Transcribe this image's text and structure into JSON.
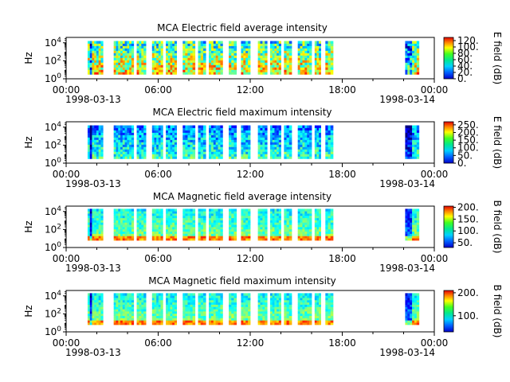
{
  "chart_data": [
    {
      "type": "heatmap",
      "title": "MCA  Electric field average intensity",
      "ylabel": "Hz",
      "yticks": [
        {
          "base": "10",
          "exp": "0"
        },
        {
          "base": "10",
          "exp": "2"
        },
        {
          "base": "10",
          "exp": "4"
        }
      ],
      "xticks": [
        "00:00",
        "06:00",
        "12:00",
        "18:00",
        "00:00"
      ],
      "xdates": [
        "1998-03-13",
        "1998-03-14"
      ],
      "xrange_hours": [
        0,
        24
      ],
      "yrange_log10_hz": [
        0,
        4.6
      ],
      "colorbar": {
        "label": "E field (dB)",
        "ticks": [
          "120.",
          "100.",
          "80.",
          "60.",
          "40.",
          "20.",
          "0."
        ],
        "range": [
          0,
          130
        ]
      },
      "data_intervals_hours": [
        [
          1.4,
          2.4
        ],
        [
          3.1,
          4.4
        ],
        [
          4.6,
          5.2
        ],
        [
          5.6,
          6.3
        ],
        [
          6.5,
          7.2
        ],
        [
          7.6,
          8.4
        ],
        [
          8.6,
          9.1
        ],
        [
          9.3,
          10.2
        ],
        [
          10.6,
          11.1
        ],
        [
          11.4,
          12.0
        ],
        [
          12.5,
          13.1
        ],
        [
          13.3,
          14.0
        ],
        [
          14.2,
          14.7
        ],
        [
          15.1,
          16.0
        ],
        [
          16.2,
          16.6
        ],
        [
          16.9,
          17.4
        ],
        [
          22.1,
          23.0
        ]
      ],
      "freq_band_log10_hz": [
        0.5,
        4.2
      ],
      "profile": "average"
    },
    {
      "type": "heatmap",
      "title": "MCA  Electric field maximum intensity",
      "ylabel": "Hz",
      "yticks": [
        {
          "base": "10",
          "exp": "0"
        },
        {
          "base": "10",
          "exp": "2"
        },
        {
          "base": "10",
          "exp": "4"
        }
      ],
      "xticks": [
        "00:00",
        "06:00",
        "12:00",
        "18:00",
        "00:00"
      ],
      "xdates": [
        "1998-03-13",
        "1998-03-14"
      ],
      "xrange_hours": [
        0,
        24
      ],
      "yrange_log10_hz": [
        0,
        4.6
      ],
      "colorbar": {
        "label": "E field (dB)",
        "ticks": [
          "250.",
          "200.",
          "150.",
          "100.",
          "50.",
          "0."
        ],
        "range": [
          0,
          270
        ]
      },
      "data_intervals_hours": [
        [
          1.4,
          2.4
        ],
        [
          3.1,
          4.4
        ],
        [
          4.6,
          5.2
        ],
        [
          5.6,
          6.3
        ],
        [
          6.5,
          7.2
        ],
        [
          7.6,
          8.4
        ],
        [
          8.6,
          9.1
        ],
        [
          9.3,
          10.2
        ],
        [
          10.6,
          11.1
        ],
        [
          11.4,
          12.0
        ],
        [
          12.5,
          13.1
        ],
        [
          13.3,
          14.0
        ],
        [
          14.2,
          14.7
        ],
        [
          15.1,
          16.0
        ],
        [
          16.2,
          16.6
        ],
        [
          16.9,
          17.4
        ],
        [
          22.1,
          23.0
        ]
      ],
      "freq_band_log10_hz": [
        0.5,
        4.2
      ],
      "profile": "maximum"
    },
    {
      "type": "heatmap",
      "title": "MCA  Magnetic field average intensity",
      "ylabel": "Hz",
      "yticks": [
        {
          "base": "10",
          "exp": "0"
        },
        {
          "base": "10",
          "exp": "2"
        },
        {
          "base": "10",
          "exp": "4"
        }
      ],
      "xticks": [
        "00:00",
        "06:00",
        "12:00",
        "18:00",
        "00:00"
      ],
      "xdates": [
        "1998-03-13",
        "1998-03-14"
      ],
      "xrange_hours": [
        0,
        24
      ],
      "yrange_log10_hz": [
        0,
        4.6
      ],
      "colorbar": {
        "label": "B field (dB)",
        "ticks": [
          "200.",
          "150.",
          "100.",
          "50."
        ],
        "range": [
          30,
          205
        ]
      },
      "data_intervals_hours": [
        [
          1.4,
          2.4
        ],
        [
          3.1,
          4.4
        ],
        [
          4.6,
          5.2
        ],
        [
          5.6,
          6.3
        ],
        [
          6.5,
          7.2
        ],
        [
          7.6,
          8.4
        ],
        [
          8.6,
          9.1
        ],
        [
          9.3,
          10.2
        ],
        [
          10.6,
          11.1
        ],
        [
          11.4,
          12.0
        ],
        [
          12.5,
          13.1
        ],
        [
          13.3,
          14.0
        ],
        [
          14.2,
          14.7
        ],
        [
          15.1,
          16.0
        ],
        [
          16.2,
          16.6
        ],
        [
          16.9,
          17.4
        ],
        [
          22.1,
          23.0
        ]
      ],
      "freq_band_log10_hz": [
        0.8,
        4.3
      ],
      "profile": "magnetic"
    },
    {
      "type": "heatmap",
      "title": "MCA  Magnetic field maximum intensity",
      "ylabel": "Hz",
      "yticks": [
        {
          "base": "10",
          "exp": "0"
        },
        {
          "base": "10",
          "exp": "2"
        },
        {
          "base": "10",
          "exp": "4"
        }
      ],
      "xticks": [
        "00:00",
        "06:00",
        "12:00",
        "18:00",
        "00:00"
      ],
      "xdates": [
        "1998-03-13",
        "1998-03-14"
      ],
      "xrange_hours": [
        0,
        24
      ],
      "yrange_log10_hz": [
        0,
        4.6
      ],
      "colorbar": {
        "label": "B field (dB)",
        "ticks": [
          "200.",
          "100."
        ],
        "range": [
          30,
          210
        ]
      },
      "data_intervals_hours": [
        [
          1.4,
          2.4
        ],
        [
          3.1,
          4.4
        ],
        [
          4.6,
          5.2
        ],
        [
          5.6,
          6.3
        ],
        [
          6.5,
          7.2
        ],
        [
          7.6,
          8.4
        ],
        [
          8.6,
          9.1
        ],
        [
          9.3,
          10.2
        ],
        [
          10.6,
          11.1
        ],
        [
          11.4,
          12.0
        ],
        [
          12.5,
          13.1
        ],
        [
          13.3,
          14.0
        ],
        [
          14.2,
          14.7
        ],
        [
          15.1,
          16.0
        ],
        [
          16.2,
          16.6
        ],
        [
          16.9,
          17.4
        ],
        [
          22.1,
          23.0
        ]
      ],
      "freq_band_log10_hz": [
        0.8,
        4.3
      ],
      "profile": "magnetic"
    }
  ]
}
